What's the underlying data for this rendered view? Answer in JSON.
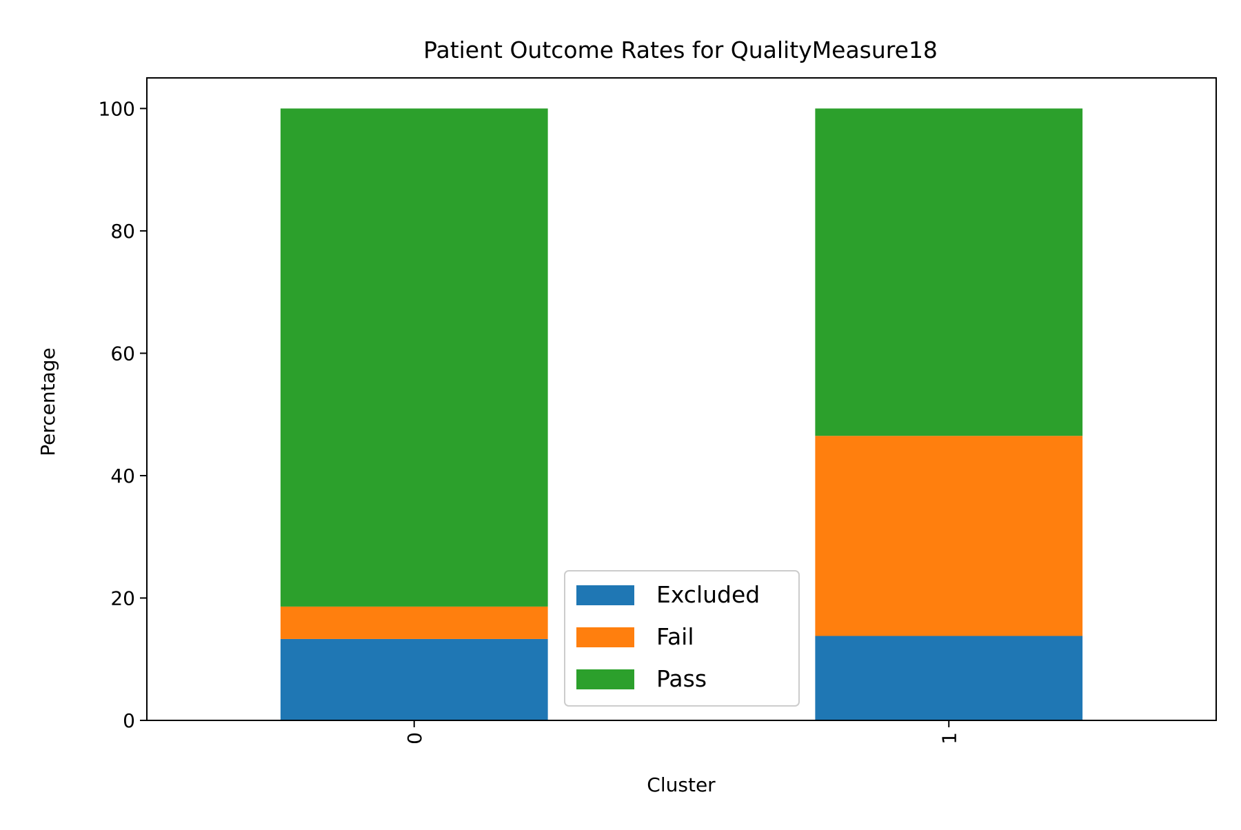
{
  "chart_data": {
    "type": "bar",
    "stacked": true,
    "title": "Patient Outcome Rates for QualityMeasure18",
    "xlabel": "Cluster",
    "ylabel": "Percentage",
    "categories": [
      "0",
      "1"
    ],
    "series": [
      {
        "name": "Excluded",
        "color": "#1f77b4",
        "values": [
          13.3,
          13.8
        ]
      },
      {
        "name": "Fail",
        "color": "#ff7f0e",
        "values": [
          5.3,
          32.7
        ]
      },
      {
        "name": "Pass",
        "color": "#2ca02c",
        "values": [
          81.4,
          53.5
        ]
      }
    ],
    "ylim": [
      0,
      105
    ],
    "yticks": [
      0,
      20,
      40,
      60,
      80,
      100
    ],
    "x_tick_rotation": 90,
    "grid": false,
    "legend_position": "lower center"
  }
}
